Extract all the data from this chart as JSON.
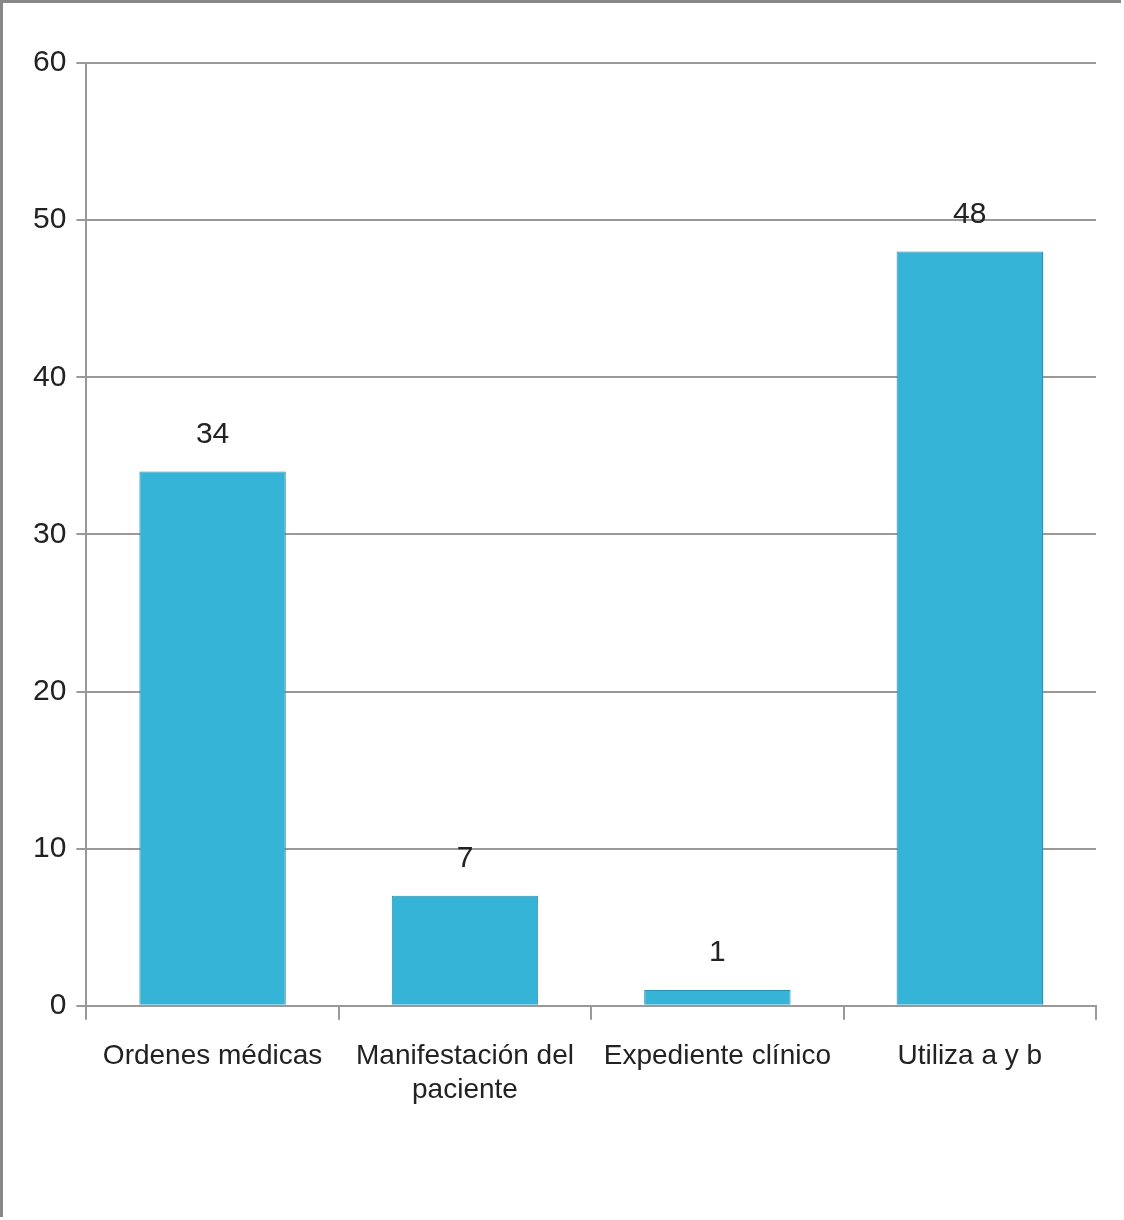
{
  "chart_data": {
    "type": "bar",
    "categories": [
      "Ordenes médicas",
      "Manifestación del paciente",
      "Expediente clínico",
      "Utiliza a y b"
    ],
    "values": [
      34,
      7,
      1,
      48
    ],
    "color": "#36b4d8",
    "ylim": [
      0,
      60
    ],
    "yticks": [
      0,
      10,
      20,
      30,
      40,
      50,
      60
    ],
    "grid": "y",
    "legend": false,
    "data_labels": true
  }
}
